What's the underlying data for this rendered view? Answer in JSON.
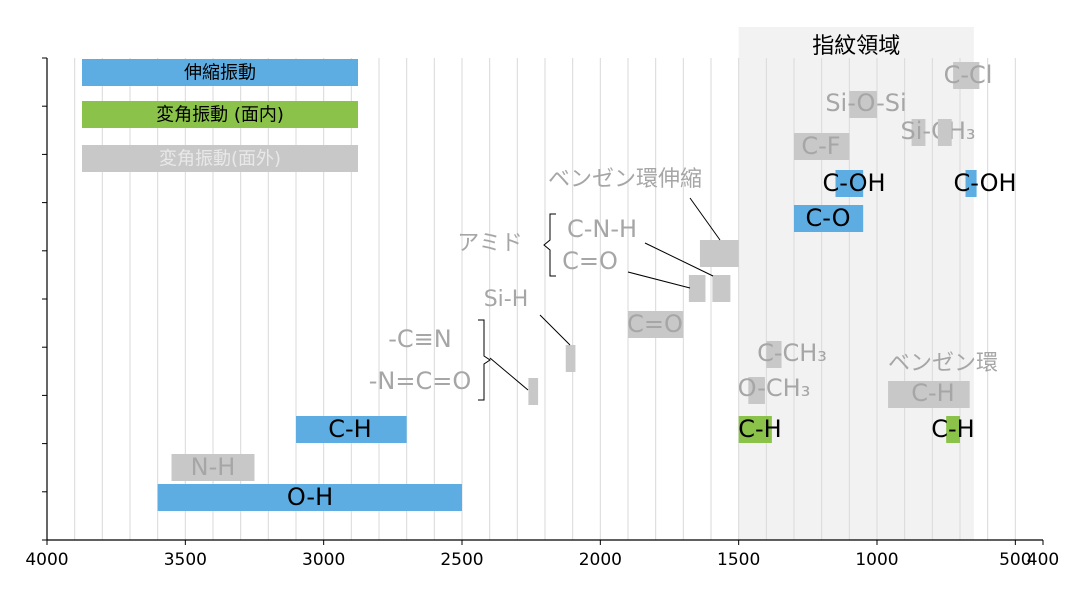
{
  "chart_data": {
    "type": "range-bar",
    "xlim": [
      4000,
      400
    ],
    "xticks": [
      4000,
      3500,
      3000,
      2500,
      2000,
      1500,
      1000,
      500,
      400
    ],
    "xgrid": [
      3900,
      3800,
      3700,
      3600,
      3500,
      3400,
      3300,
      3200,
      3100,
      3000,
      2900,
      2800,
      2700,
      2600,
      2500,
      2400,
      2300,
      2200,
      2100,
      2000,
      1900,
      1800,
      1700,
      1600,
      1500,
      1400,
      1300,
      1200,
      1100,
      1000,
      900,
      800,
      700,
      600,
      500
    ],
    "region": {
      "label": "指紋領域",
      "range": [
        1500,
        650
      ],
      "color": "#f2f2f2"
    },
    "series": [
      {
        "name": "伸縮振動",
        "color": "#5dade2",
        "bars": [
          {
            "label": "O-H",
            "values": [
              3600,
              2500
            ]
          },
          {
            "label": "C-H",
            "values": [
              3100,
              2700
            ]
          },
          {
            "label": "C-O",
            "values": [
              1300,
              1050
            ]
          },
          {
            "label": "C-OH",
            "values": [
              1150,
              1050
            ]
          },
          {
            "label": "C-OH",
            "values": [
              680,
              640
            ]
          }
        ]
      },
      {
        "name": "変角振動 (面内)",
        "color": "#8bc34a",
        "bars": [
          {
            "label": "C-H",
            "values": [
              1500,
              1380
            ]
          },
          {
            "label": "C-H",
            "values": [
              750,
              700
            ]
          }
        ]
      },
      {
        "name": "変角振動(面外)",
        "color": "#c8c8c8",
        "bars": [
          {
            "label": "N-H",
            "values": [
              3550,
              3250
            ]
          },
          {
            "values": [
              2260,
              2225
            ]
          },
          {
            "values": [
              2125,
              2090
            ]
          },
          {
            "label": "C=O",
            "values": [
              1900,
              1700
            ]
          },
          {
            "values": [
              1680,
              1620
            ]
          },
          {
            "values": [
              1595,
              1530
            ]
          },
          {
            "values": [
              1640,
              1500
            ]
          },
          {
            "label": "C-F",
            "values": [
              1300,
              1100
            ]
          },
          {
            "label": "Si-O-Si",
            "values": [
              1100,
              1000
            ]
          },
          {
            "label": "Si-CH₃",
            "values": [
              875,
              825
            ]
          },
          {
            "values": [
              780,
              730
            ]
          },
          {
            "label": "C-Cl",
            "values": [
              725,
              630
            ]
          },
          {
            "label": "C-CH₃",
            "values": [
              1400,
              1345
            ]
          },
          {
            "label": "O-CH₃",
            "values": [
              1465,
              1405
            ]
          },
          {
            "label": "C-H",
            "values": [
              960,
              665
            ]
          }
        ]
      }
    ],
    "annotations": [
      "ベンゼン環伸縮",
      "アミド",
      "C-N-H",
      "C=O",
      "-C≡N",
      "-N=C=O",
      "Si-H",
      "ベンゼン環"
    ]
  }
}
